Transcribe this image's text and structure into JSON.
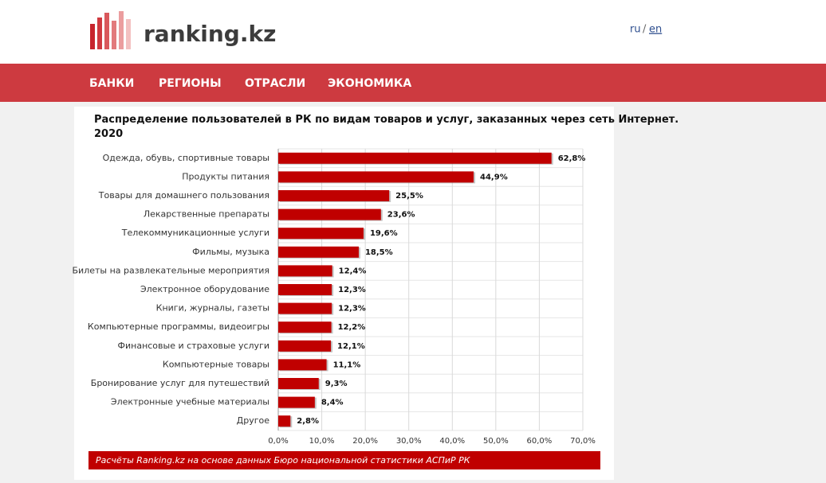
{
  "header": {
    "logo": "ranking.kz",
    "lang": [
      "ru",
      "/",
      "en"
    ]
  },
  "nav": [
    "БАНКИ",
    "РЕГИОНЫ",
    "ОТРАСЛИ",
    "ЭКОНОМИКА"
  ],
  "chart_data": {
    "type": "bar",
    "orientation": "horizontal",
    "title": "Распределение пользователей в РК по видам товаров и услуг, заказанных через сеть Интернет. 2020",
    "categories": [
      "Одежда, обувь, спортивные товары",
      "Продукты питания",
      "Товары для домашнего пользования",
      "Лекарственные препараты",
      "Телекоммуникационные услуги",
      "Фильмы, музыка",
      "Билеты на развлекательные мероприятия",
      "Электронное оборудование",
      "Книги, журналы, газеты",
      "Компьютерные программы, видеоигры",
      "Финансовые и страховые услуги",
      "Компьютерные товары",
      "Бронирование услуг для путешествий",
      "Электронные учебные материалы",
      "Другое"
    ],
    "values": [
      62.8,
      44.9,
      25.5,
      23.6,
      19.6,
      18.5,
      12.4,
      12.3,
      12.3,
      12.2,
      12.1,
      11.1,
      9.3,
      8.4,
      2.8
    ],
    "value_labels": [
      "62,8%",
      "44,9%",
      "25,5%",
      "23,6%",
      "19,6%",
      "18,5%",
      "12,4%",
      "12,3%",
      "12,3%",
      "12,2%",
      "12,1%",
      "11,1%",
      "9,3%",
      "8,4%",
      "2,8%"
    ],
    "color": "#c00000",
    "xlim": [
      0,
      70
    ],
    "xticks": [
      {
        "value": 0,
        "label": "0,0%"
      },
      {
        "value": 10,
        "label": "10,0%"
      },
      {
        "value": 20,
        "label": "20,0%"
      },
      {
        "value": 30,
        "label": "30,0%"
      },
      {
        "value": 40,
        "label": "40,0%"
      },
      {
        "value": 50,
        "label": "50,0%"
      },
      {
        "value": 60,
        "label": "60,0%"
      },
      {
        "value": 70,
        "label": "70,0%"
      }
    ],
    "grid": true,
    "source": "Расчёты Ranking.kz на основе данных Бюро национальной статистики АСПиР РК"
  }
}
